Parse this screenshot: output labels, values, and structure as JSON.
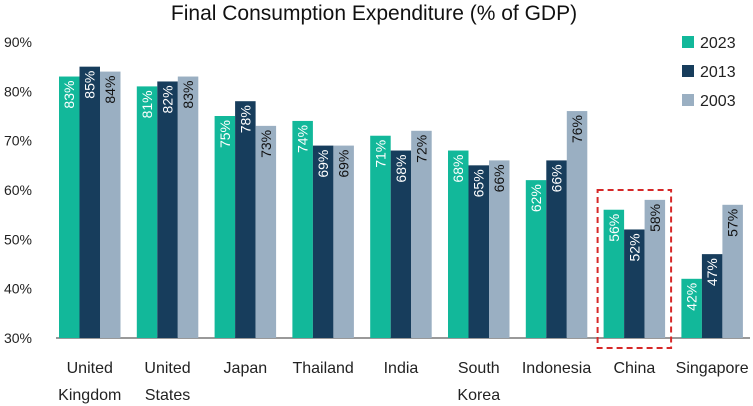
{
  "chart_data": {
    "type": "bar",
    "title": "Final Consumption Expenditure (% of GDP)",
    "xlabel": "",
    "ylabel": "",
    "ylim": [
      30,
      90
    ],
    "yticks": [
      "30%",
      "40%",
      "50%",
      "60%",
      "70%",
      "80%",
      "90%"
    ],
    "grid": false,
    "legend_position": "top-right",
    "categories": [
      [
        "United",
        "Kingdom"
      ],
      [
        "United",
        "States"
      ],
      [
        "Japan"
      ],
      [
        "Thailand"
      ],
      [
        "India"
      ],
      [
        "South",
        "Korea"
      ],
      [
        "Indonesia"
      ],
      [
        "China"
      ],
      [
        "Singapore"
      ]
    ],
    "series": [
      {
        "name": "2023",
        "color": "#12b89a",
        "label_color": "#ffffff",
        "values": [
          83,
          81,
          75,
          74,
          71,
          68,
          62,
          56,
          42
        ],
        "labels": [
          "83%",
          "81%",
          "75%",
          "74%",
          "71%",
          "68%",
          "62%",
          "56%",
          "42%"
        ]
      },
      {
        "name": "2013",
        "color": "#173d5c",
        "label_color": "#ffffff",
        "values": [
          85,
          82,
          78,
          69,
          68,
          65,
          66,
          52,
          47
        ],
        "labels": [
          "85%",
          "82%",
          "78%",
          "69%",
          "68%",
          "65%",
          "66%",
          "52%",
          "47%"
        ]
      },
      {
        "name": "2003",
        "color": "#9aafc2",
        "label_color": "#111111",
        "values": [
          84,
          83,
          73,
          69,
          72,
          66,
          76,
          58,
          57
        ],
        "labels": [
          "84%",
          "83%",
          "73%",
          "69%",
          "72%",
          "66%",
          "76%",
          "58%",
          "57%"
        ]
      }
    ],
    "highlight": {
      "category": "China",
      "style": "dashed box",
      "color": "#d62828"
    }
  }
}
